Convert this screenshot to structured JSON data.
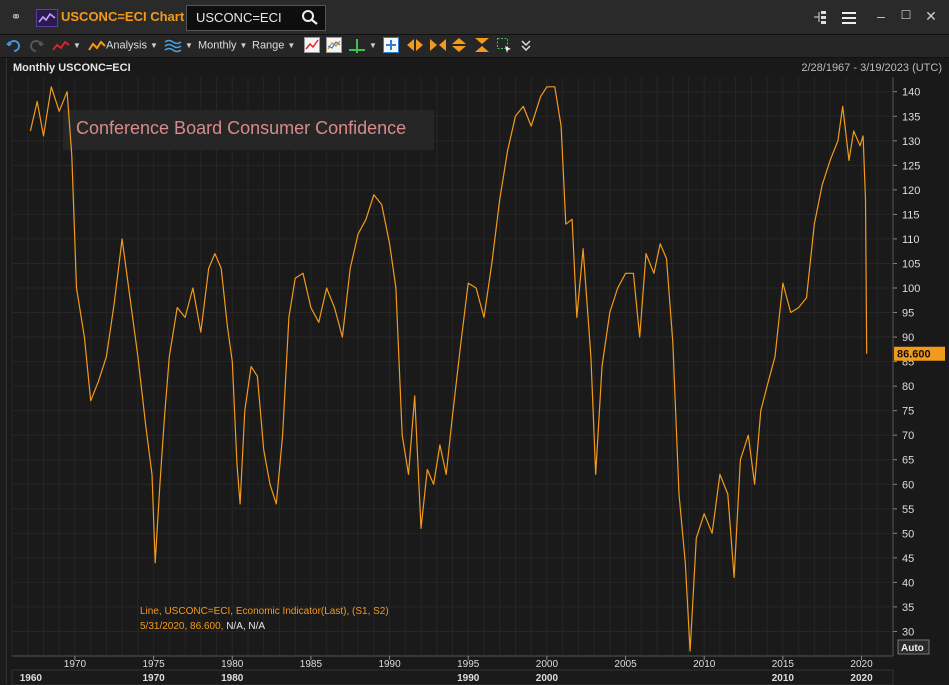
{
  "app": {
    "title": "USCONC=ECI Chart",
    "ric_value": "USCONC=ECI",
    "brand_color": "#f29a1c"
  },
  "toolbar": {
    "analysis_label": "Analysis",
    "interval_label": "Monthly",
    "range_label": "Range"
  },
  "panel": {
    "heading": "Monthly USCONC=ECI",
    "date_range": "2/28/1967 - 3/19/2023 (UTC)"
  },
  "chart_data": {
    "type": "line",
    "title": "Conference Board Consumer Confidence",
    "series": [
      {
        "name": "USCONC=ECI",
        "color": "#f29a1c",
        "points": [
          [
            1967.17,
            132
          ],
          [
            1967.6,
            138
          ],
          [
            1968.0,
            131
          ],
          [
            1968.5,
            141
          ],
          [
            1969.0,
            136
          ],
          [
            1969.5,
            140
          ],
          [
            1969.8,
            127
          ],
          [
            1970.1,
            100
          ],
          [
            1970.6,
            90
          ],
          [
            1971.0,
            77
          ],
          [
            1971.5,
            81
          ],
          [
            1972.0,
            86
          ],
          [
            1972.5,
            97
          ],
          [
            1973.0,
            110
          ],
          [
            1973.5,
            98
          ],
          [
            1974.0,
            86
          ],
          [
            1974.5,
            72
          ],
          [
            1974.9,
            62
          ],
          [
            1975.1,
            44
          ],
          [
            1975.4,
            60
          ],
          [
            1975.7,
            74
          ],
          [
            1976.0,
            86
          ],
          [
            1976.5,
            96
          ],
          [
            1977.0,
            94
          ],
          [
            1977.5,
            100
          ],
          [
            1978.0,
            91
          ],
          [
            1978.5,
            104
          ],
          [
            1978.9,
            107
          ],
          [
            1979.3,
            104
          ],
          [
            1979.7,
            92
          ],
          [
            1980.0,
            85
          ],
          [
            1980.3,
            64
          ],
          [
            1980.5,
            56
          ],
          [
            1980.8,
            75
          ],
          [
            1981.2,
            84
          ],
          [
            1981.6,
            82
          ],
          [
            1982.0,
            67
          ],
          [
            1982.4,
            60
          ],
          [
            1982.8,
            56
          ],
          [
            1983.2,
            70
          ],
          [
            1983.6,
            94
          ],
          [
            1984.0,
            102
          ],
          [
            1984.5,
            103
          ],
          [
            1985.0,
            96
          ],
          [
            1985.5,
            93
          ],
          [
            1986.0,
            100
          ],
          [
            1986.5,
            96
          ],
          [
            1987.0,
            90
          ],
          [
            1987.5,
            104
          ],
          [
            1988.0,
            111
          ],
          [
            1988.5,
            114
          ],
          [
            1989.0,
            119
          ],
          [
            1989.5,
            117
          ],
          [
            1990.0,
            109
          ],
          [
            1990.4,
            100
          ],
          [
            1990.8,
            70
          ],
          [
            1991.2,
            62
          ],
          [
            1991.6,
            78
          ],
          [
            1992.0,
            51
          ],
          [
            1992.4,
            63
          ],
          [
            1992.8,
            60
          ],
          [
            1993.2,
            68
          ],
          [
            1993.6,
            62
          ],
          [
            1994.0,
            74
          ],
          [
            1994.5,
            88
          ],
          [
            1995.0,
            101
          ],
          [
            1995.5,
            100
          ],
          [
            1996.0,
            94
          ],
          [
            1996.5,
            105
          ],
          [
            1997.0,
            118
          ],
          [
            1997.5,
            128
          ],
          [
            1998.0,
            135
          ],
          [
            1998.5,
            137
          ],
          [
            1999.0,
            133
          ],
          [
            1999.6,
            139
          ],
          [
            2000.0,
            141
          ],
          [
            2000.5,
            141
          ],
          [
            2000.9,
            133
          ],
          [
            2001.2,
            113
          ],
          [
            2001.6,
            114
          ],
          [
            2001.9,
            94
          ],
          [
            2002.3,
            108
          ],
          [
            2002.8,
            86
          ],
          [
            2003.1,
            62
          ],
          [
            2003.5,
            84
          ],
          [
            2004.0,
            95
          ],
          [
            2004.5,
            100
          ],
          [
            2005.0,
            103
          ],
          [
            2005.5,
            103
          ],
          [
            2005.9,
            90
          ],
          [
            2006.3,
            107
          ],
          [
            2006.8,
            103
          ],
          [
            2007.2,
            109
          ],
          [
            2007.6,
            106
          ],
          [
            2008.0,
            89
          ],
          [
            2008.4,
            58
          ],
          [
            2008.8,
            44
          ],
          [
            2009.1,
            26
          ],
          [
            2009.5,
            49
          ],
          [
            2010.0,
            54
          ],
          [
            2010.5,
            50
          ],
          [
            2011.0,
            62
          ],
          [
            2011.5,
            58
          ],
          [
            2011.9,
            41
          ],
          [
            2012.3,
            65
          ],
          [
            2012.8,
            70
          ],
          [
            2013.2,
            60
          ],
          [
            2013.6,
            75
          ],
          [
            2014.0,
            80
          ],
          [
            2014.5,
            86
          ],
          [
            2015.0,
            101
          ],
          [
            2015.5,
            95
          ],
          [
            2016.0,
            96
          ],
          [
            2016.5,
            98
          ],
          [
            2017.0,
            113
          ],
          [
            2017.5,
            121
          ],
          [
            2018.0,
            126
          ],
          [
            2018.5,
            130
          ],
          [
            2018.8,
            137
          ],
          [
            2019.2,
            126
          ],
          [
            2019.5,
            132
          ],
          [
            2019.9,
            129
          ],
          [
            2020.1,
            131
          ],
          [
            2020.25,
            118
          ],
          [
            2020.33,
            86.6
          ]
        ]
      }
    ],
    "last_value": "86.600",
    "xlim": [
      1966,
      2022
    ],
    "ylim": [
      25,
      143
    ],
    "y_ticks": [
      30,
      35,
      40,
      45,
      50,
      55,
      60,
      65,
      70,
      75,
      80,
      85,
      90,
      95,
      100,
      105,
      110,
      115,
      120,
      125,
      130,
      135,
      140
    ],
    "x_ticks_top": [
      "1970",
      "1975",
      "1980",
      "1985",
      "1990",
      "1995",
      "2000",
      "2005",
      "2010",
      "2015",
      "2020"
    ],
    "x_ticks_bottom": [
      "1960",
      "1970",
      "1980",
      "1990",
      "2000",
      "2010",
      "2020"
    ],
    "x_ticks_top_values": [
      1970,
      1975,
      1980,
      1985,
      1990,
      1995,
      2000,
      2005,
      2010,
      2015,
      2020
    ],
    "x_ticks_bottom_values": [
      1967.2,
      1975,
      1980,
      1995,
      2000,
      2015,
      2020
    ],
    "grid": true,
    "legend": {
      "line1": "Line, USCONC=ECI, Economic Indicator(Last), (S1, S2)",
      "line2_orange": "5/31/2020, 86.600, ",
      "line2_white": "N/A, N/A"
    },
    "auto_label": "Auto"
  }
}
